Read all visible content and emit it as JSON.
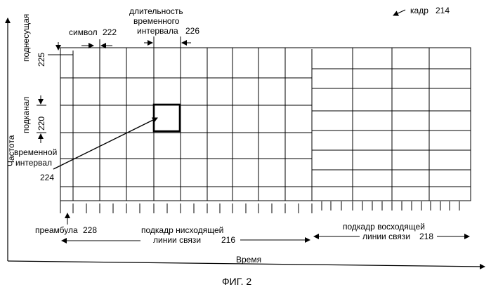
{
  "figure": {
    "caption": "ФИГ. 2",
    "labels": {
      "frame": "кадр",
      "frame_ref": "214",
      "slot_duration_line1": "длительность",
      "slot_duration_line2": "временного",
      "slot_duration_line3": "интервала",
      "slot_duration_ref": "226",
      "symbol": "символ",
      "symbol_ref": "222",
      "subcarrier": "поднесущая",
      "subcarrier_ref": "225",
      "subchannel": "подканал",
      "subchannel_ref": "220",
      "frequency": "Частота",
      "timeslot_line1": "временной",
      "timeslot_line2": "интервал",
      "timeslot_ref": "224",
      "preamble": "преамбула",
      "preamble_ref": "228",
      "downlink_line1": "подкадр нисходящей",
      "downlink_line2": "линии связи",
      "downlink_ref": "216",
      "uplink_line1": "подкадр восходящей",
      "uplink_line2": "линии связи",
      "uplink_ref": "218",
      "time": "Время"
    }
  }
}
